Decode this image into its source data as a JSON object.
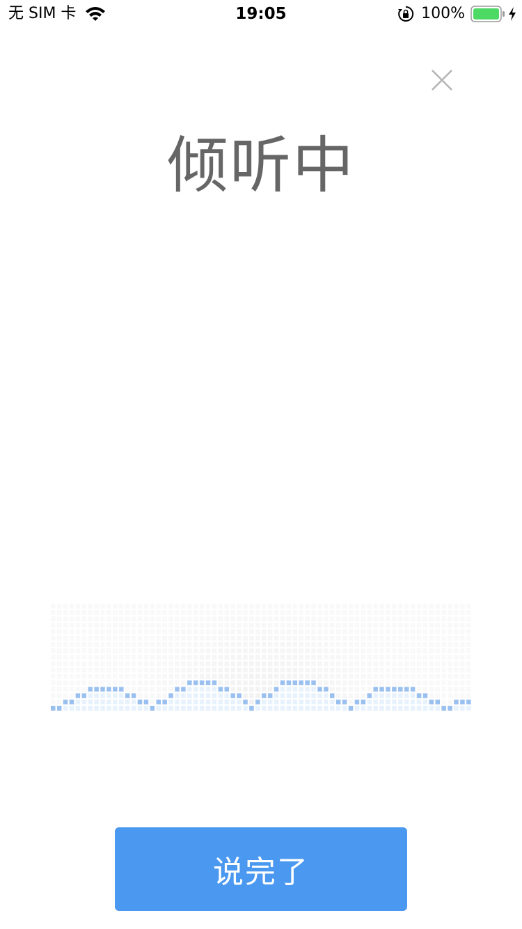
{
  "status_bar": {
    "carrier": "无 SIM 卡",
    "time": "19:05",
    "battery_percent": "100%",
    "battery_level": 1.0,
    "battery_color": "#4cd964"
  },
  "dialog": {
    "title": "倾听中",
    "close_icon": "close-icon",
    "done_label": "说完了",
    "accent_color": "#4a98ef"
  },
  "waveform": {
    "icon": "voice-waveform",
    "active_color": "#8fb9ee",
    "base_color": "#e3f0fb"
  }
}
